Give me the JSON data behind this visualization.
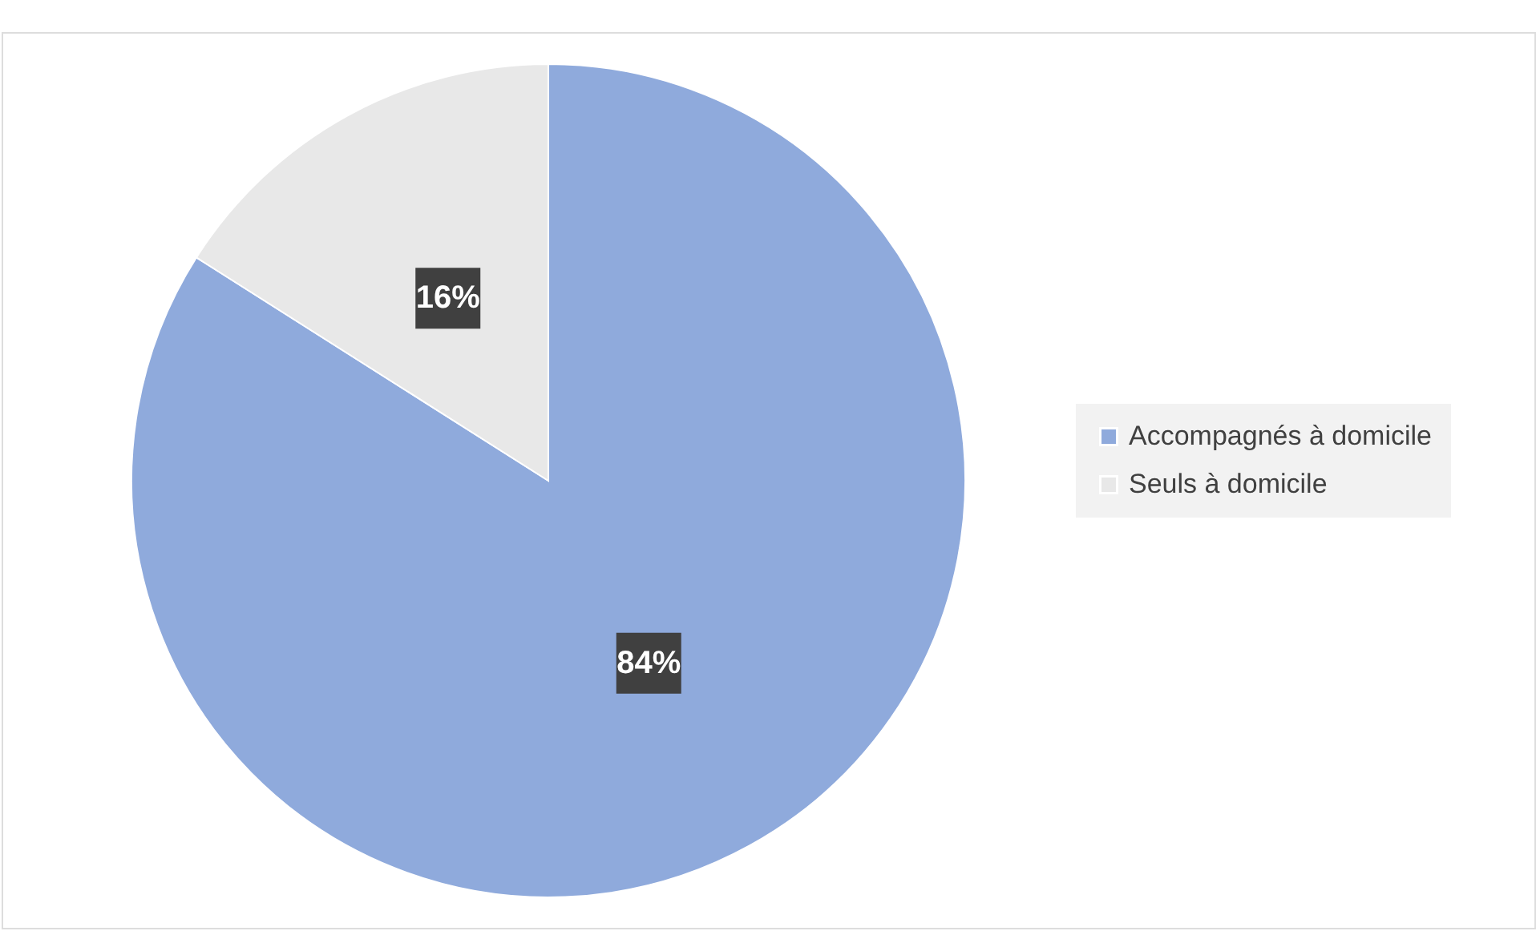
{
  "chart_data": {
    "type": "pie",
    "categories": [
      "Accompagnés à domicile",
      "Seuls à domicile"
    ],
    "values": [
      84,
      16
    ],
    "colors": [
      "#8faadc",
      "#e8e8e8"
    ],
    "value_labels": [
      "84%",
      "16%"
    ],
    "legend": "right"
  }
}
